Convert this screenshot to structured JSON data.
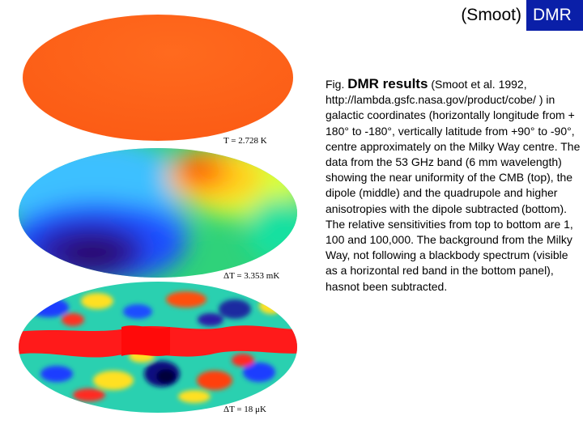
{
  "header": {
    "title_plain": "(Smoot)",
    "title_highlight": "DMR",
    "highlight_color": "#0a1fa8"
  },
  "maps": {
    "top_label": "T = 2.728 K",
    "middle_label": "ΔT = 3.353 mK",
    "bottom_label": "ΔT = 18 μK"
  },
  "caption": {
    "prefix": "Fig.",
    "title": "DMR results",
    "cite": "(Smoot et al. 1992,",
    "body": "http://lambda.gsfc.nasa.gov/product/cobe/ ) in galactic coordinates (horizontally longitude from + 180° to -180°, vertically latitude from +90° to -90°, centre approximately on the Milky Way centre. The data from the 53 GHz band (6 mm wavelength) showing the near uniformity of the CMB (top), the dipole (middle) and the quadrupole and higher anisotropies with the dipole subtracted (bottom). The relative sensitivities from top to bottom are 1, 100 and 100,000. The background from the Milky Way, not following a blackbody spectrum (visible as a horizontal red band in the bottom panel), hasnot been subtracted."
  }
}
